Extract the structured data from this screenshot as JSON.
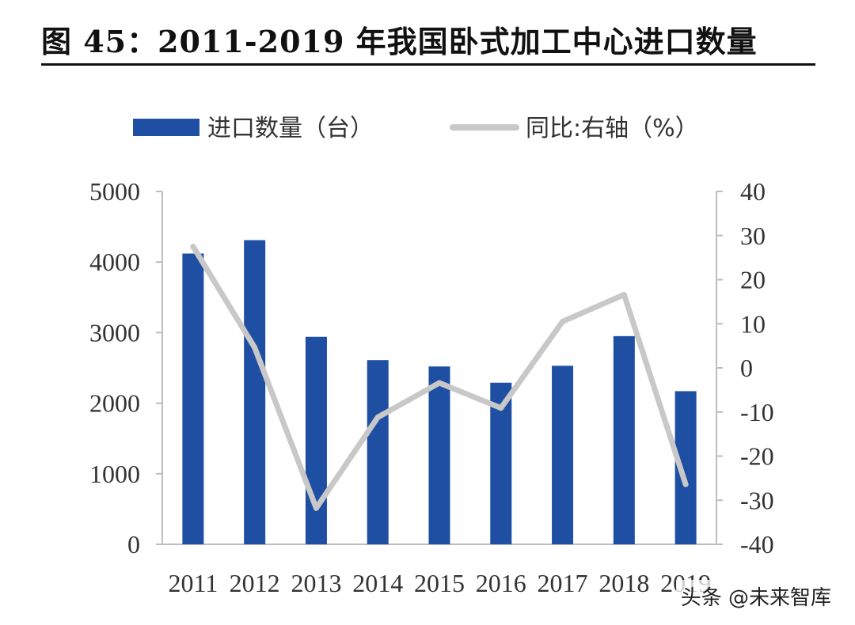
{
  "title": "图 45：2011-2019 年我国卧式加工中心进口数量",
  "watermark": "头条 @未来智库",
  "colors": {
    "bar": "#1f4fa3",
    "line": "#c8c8c8",
    "axis": "#bdbdbd"
  },
  "chart_data": {
    "type": "bar",
    "categories": [
      "2011",
      "2012",
      "2013",
      "2014",
      "2015",
      "2016",
      "2017",
      "2018",
      "2019"
    ],
    "series": [
      {
        "name": "进口数量（台）",
        "type": "bar",
        "axis": "left",
        "values": [
          4120,
          4310,
          2940,
          2610,
          2520,
          2290,
          2530,
          2950,
          2170
        ]
      },
      {
        "name": "同比:右轴（%）",
        "type": "line",
        "axis": "right",
        "values": [
          27.5,
          4.6,
          -31.8,
          -11.2,
          -3.4,
          -9.1,
          10.5,
          16.6,
          -26.4
        ]
      }
    ],
    "y_left": {
      "ylim": [
        0,
        5000
      ],
      "ticks": [
        "5000",
        "4000",
        "3000",
        "2000",
        "1000",
        "0"
      ]
    },
    "y_right": {
      "ylim": [
        -40,
        40
      ],
      "ticks": [
        "40",
        "30",
        "20",
        "10",
        "0",
        "-10",
        "-20",
        "-30",
        "-40"
      ]
    },
    "legend_position": "top"
  }
}
